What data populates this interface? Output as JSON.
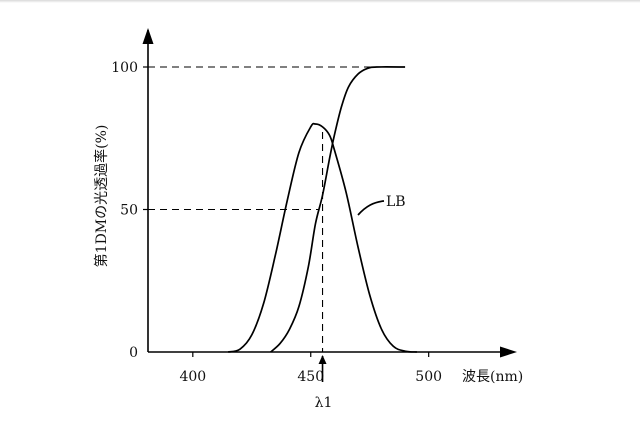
{
  "chart_data": {
    "type": "line",
    "xlabel": "波長(nm)",
    "ylabel": "第1DMの光透過率(%)",
    "x_ticks": [
      400,
      450,
      500
    ],
    "y_ticks": [
      0,
      50,
      100
    ],
    "xlim": [
      381,
      526
    ],
    "ylim": [
      0,
      100
    ],
    "grid": false,
    "series": [
      {
        "name": "LB",
        "x": [
          415,
          420,
          425,
          430,
          435,
          440,
          445,
          450,
          452,
          455,
          458,
          460,
          465,
          470,
          475,
          480,
          485,
          490,
          495
        ],
        "y": [
          0,
          1,
          6,
          17,
          34,
          53,
          70,
          79,
          80,
          79,
          76,
          71,
          56,
          37,
          20,
          8,
          2,
          0.3,
          0
        ]
      },
      {
        "x": [
          433,
          437,
          441,
          445,
          449,
          452,
          455,
          458,
          460,
          463,
          466,
          470,
          474,
          478,
          490
        ],
        "y": [
          0,
          3,
          8,
          16,
          30,
          45,
          55,
          68,
          76,
          86,
          93,
          97.5,
          99.5,
          100,
          100
        ]
      }
    ],
    "annotations": {
      "curve_label": "LB",
      "marker_label": "λ1",
      "marker_x": 455,
      "reference_lines": [
        {
          "y": 100
        },
        {
          "y": 50
        }
      ]
    }
  }
}
